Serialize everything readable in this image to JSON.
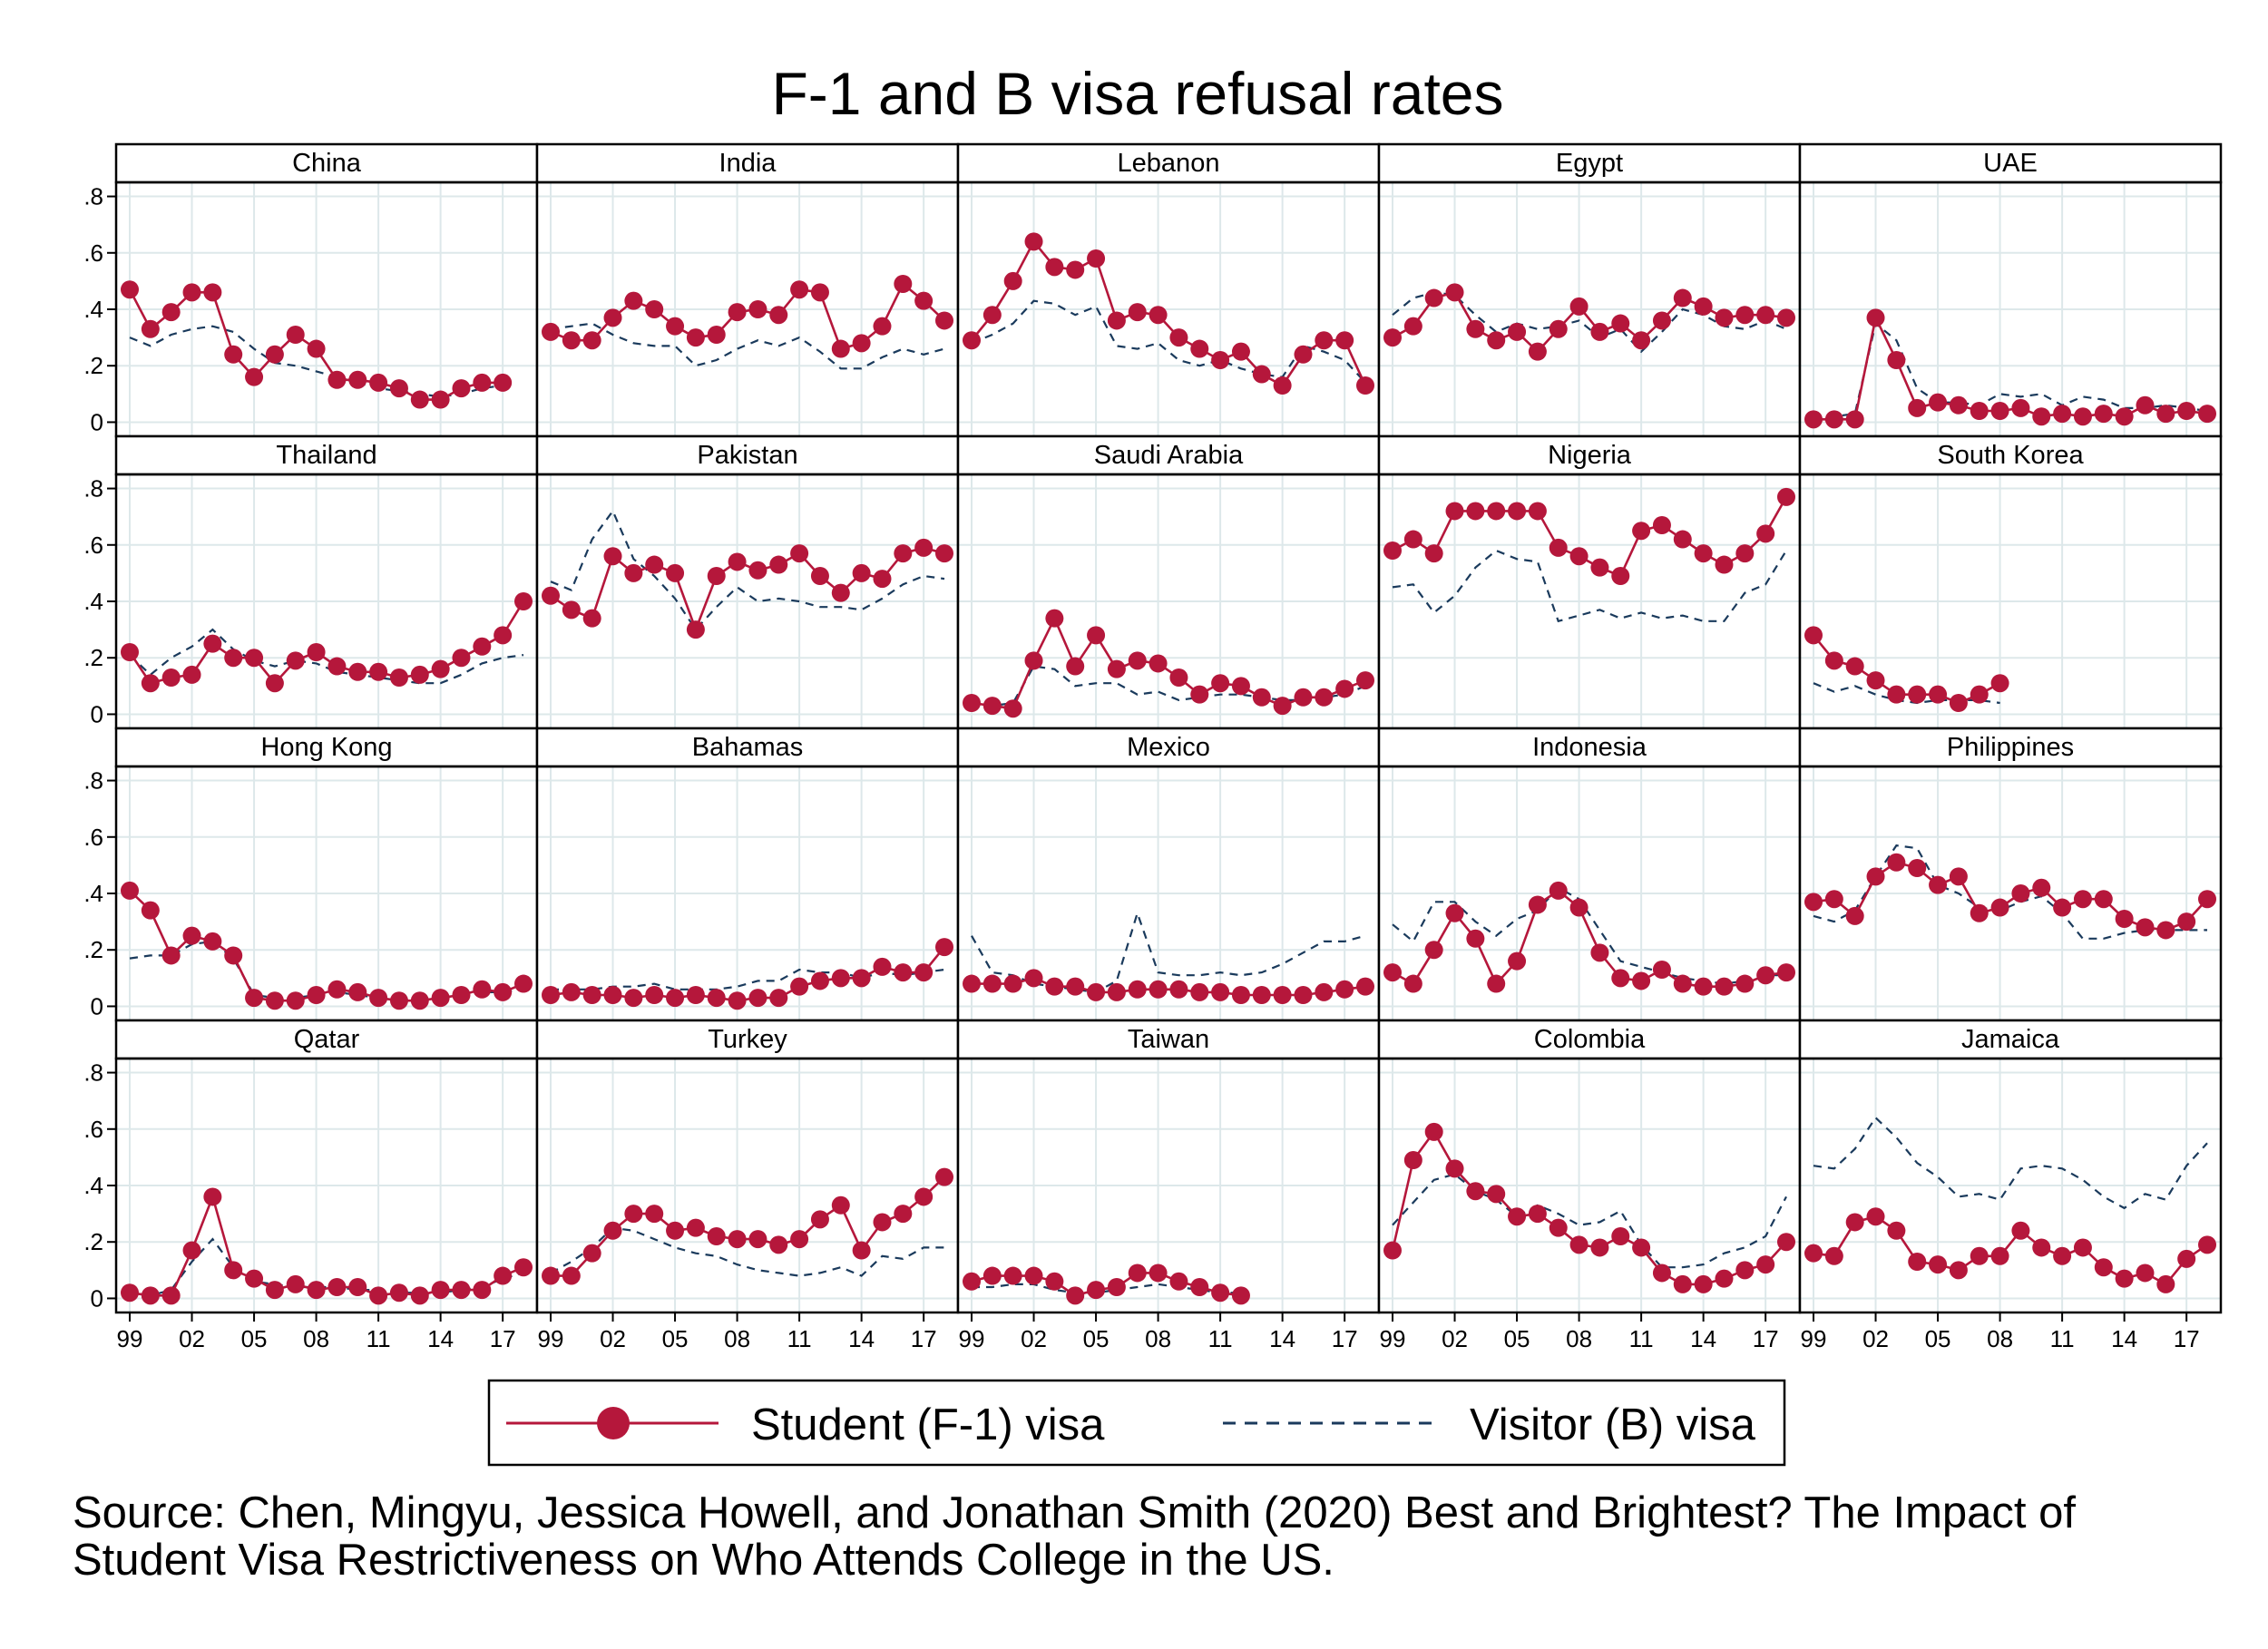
{
  "chart_data": {
    "type": "line",
    "title": "F-1 and B visa refusal rates",
    "x": [
      1999,
      2000,
      2001,
      2002,
      2003,
      2004,
      2005,
      2006,
      2007,
      2008,
      2009,
      2010,
      2011,
      2012,
      2013,
      2014,
      2015,
      2016,
      2017,
      2018
    ],
    "x_tick_values": [
      1999,
      2002,
      2005,
      2008,
      2011,
      2014,
      2017
    ],
    "x_tick_labels": [
      "99",
      "02",
      "05",
      "08",
      "11",
      "14",
      "17"
    ],
    "ylim": [
      -0.05,
      0.85
    ],
    "y_tick_values": [
      0,
      0.2,
      0.4,
      0.6,
      0.8
    ],
    "y_tick_labels": [
      "0",
      ".2",
      ".4",
      ".6",
      ".8"
    ],
    "grid": true,
    "legend": {
      "position": "bottom-center",
      "entries": [
        {
          "key": "f1",
          "label": "Student (F-1) visa",
          "color": "#b5173b",
          "style": "solid-with-markers"
        },
        {
          "key": "b",
          "label": "Visitor (B) visa",
          "color": "#1a3a5c",
          "style": "dashed"
        }
      ]
    },
    "panels": [
      {
        "name": "China",
        "f1": [
          0.47,
          0.33,
          0.39,
          0.46,
          0.46,
          0.24,
          0.16,
          0.24,
          0.31,
          0.26,
          0.15,
          0.15,
          0.14,
          0.12,
          0.08,
          0.08,
          0.12,
          0.14,
          0.14,
          null
        ],
        "b": [
          0.3,
          0.27,
          0.31,
          0.33,
          0.34,
          0.32,
          0.26,
          0.21,
          0.2,
          0.18,
          0.16,
          0.14,
          0.12,
          0.11,
          0.1,
          0.09,
          0.1,
          0.12,
          0.13,
          null
        ]
      },
      {
        "name": "India",
        "f1": [
          0.32,
          0.29,
          0.29,
          0.37,
          0.43,
          0.4,
          0.34,
          0.3,
          0.31,
          0.39,
          0.4,
          0.38,
          0.47,
          0.46,
          0.26,
          0.28,
          0.34,
          0.49,
          0.43,
          0.36
        ],
        "b": [
          0.33,
          0.34,
          0.35,
          0.31,
          0.28,
          0.27,
          0.27,
          0.2,
          0.22,
          0.26,
          0.29,
          0.27,
          0.3,
          0.25,
          0.19,
          0.19,
          0.23,
          0.26,
          0.24,
          0.26
        ]
      },
      {
        "name": "Lebanon",
        "f1": [
          0.29,
          0.38,
          0.5,
          0.64,
          0.55,
          0.54,
          0.58,
          0.36,
          0.39,
          0.38,
          0.3,
          0.26,
          0.22,
          0.25,
          0.17,
          0.13,
          0.24,
          0.29,
          0.29,
          0.13
        ],
        "b": [
          0.28,
          0.31,
          0.35,
          0.43,
          0.42,
          0.38,
          0.41,
          0.27,
          0.26,
          0.28,
          0.22,
          0.2,
          0.22,
          0.19,
          0.17,
          0.16,
          0.27,
          0.25,
          0.22,
          0.14
        ]
      },
      {
        "name": "Egypt",
        "f1": [
          0.3,
          0.34,
          0.44,
          0.46,
          0.33,
          0.29,
          0.32,
          0.25,
          0.33,
          0.41,
          0.32,
          0.35,
          0.29,
          0.36,
          0.44,
          0.41,
          0.37,
          0.38,
          0.38,
          0.37
        ],
        "b": [
          0.38,
          0.44,
          0.46,
          0.45,
          0.38,
          0.32,
          0.35,
          0.33,
          0.34,
          0.36,
          0.3,
          0.33,
          0.25,
          0.32,
          0.4,
          0.38,
          0.34,
          0.33,
          0.36,
          0.33
        ]
      },
      {
        "name": "UAE",
        "f1": [
          0.01,
          0.01,
          0.01,
          0.37,
          0.22,
          0.05,
          0.07,
          0.06,
          0.04,
          0.04,
          0.05,
          0.02,
          0.03,
          0.02,
          0.03,
          0.02,
          0.06,
          0.03,
          0.04,
          0.03
        ],
        "b": [
          0.02,
          0.02,
          0.03,
          0.35,
          0.29,
          0.12,
          0.07,
          0.07,
          0.06,
          0.1,
          0.09,
          0.1,
          0.06,
          0.09,
          0.08,
          0.05,
          0.05,
          0.06,
          0.05,
          0.04
        ]
      },
      {
        "name": "Thailand",
        "f1": [
          0.22,
          0.11,
          0.13,
          0.14,
          0.25,
          0.2,
          0.2,
          0.11,
          0.19,
          0.22,
          0.17,
          0.15,
          0.15,
          0.13,
          0.14,
          0.16,
          0.2,
          0.24,
          0.28,
          0.4
        ],
        "b": [
          0.21,
          0.14,
          0.2,
          0.24,
          0.3,
          0.23,
          0.19,
          0.17,
          0.19,
          0.18,
          0.15,
          0.14,
          0.13,
          0.12,
          0.11,
          0.11,
          0.14,
          0.18,
          0.2,
          0.21
        ]
      },
      {
        "name": "Pakistan",
        "f1": [
          0.42,
          0.37,
          0.34,
          0.56,
          0.5,
          0.53,
          0.5,
          0.3,
          0.49,
          0.54,
          0.51,
          0.53,
          0.57,
          0.49,
          0.43,
          0.5,
          0.48,
          0.57,
          0.59,
          0.57
        ],
        "b": [
          0.47,
          0.44,
          0.62,
          0.72,
          0.55,
          0.49,
          0.41,
          0.3,
          0.38,
          0.45,
          0.4,
          0.41,
          0.4,
          0.38,
          0.38,
          0.37,
          0.41,
          0.46,
          0.49,
          0.48
        ]
      },
      {
        "name": "Saudi Arabia",
        "f1": [
          0.04,
          0.03,
          0.02,
          0.19,
          0.34,
          0.17,
          0.28,
          0.16,
          0.19,
          0.18,
          0.13,
          0.07,
          0.11,
          0.1,
          0.06,
          0.03,
          0.06,
          0.06,
          0.09,
          0.12
        ],
        "b": [
          0.03,
          0.03,
          0.04,
          0.17,
          0.16,
          0.1,
          0.11,
          0.11,
          0.07,
          0.08,
          0.05,
          0.06,
          0.07,
          0.07,
          0.06,
          0.05,
          0.05,
          0.06,
          0.07,
          0.1
        ]
      },
      {
        "name": "Nigeria",
        "f1": [
          0.58,
          0.62,
          0.57,
          0.72,
          0.72,
          0.72,
          0.72,
          0.72,
          0.59,
          0.56,
          0.52,
          0.49,
          0.65,
          0.67,
          0.62,
          0.57,
          0.53,
          0.57,
          0.64,
          0.77
        ],
        "b": [
          0.45,
          0.46,
          0.36,
          0.42,
          0.52,
          0.58,
          0.55,
          0.54,
          0.33,
          0.35,
          0.37,
          0.34,
          0.36,
          0.34,
          0.35,
          0.33,
          0.33,
          0.43,
          0.46,
          0.58
        ]
      },
      {
        "name": "South Korea",
        "f1": [
          0.28,
          0.19,
          0.17,
          0.12,
          0.07,
          0.07,
          0.07,
          0.04,
          0.07,
          0.11,
          null,
          null,
          null,
          null,
          null,
          null,
          null,
          null,
          null,
          null
        ],
        "b": [
          0.11,
          0.08,
          0.1,
          0.07,
          0.05,
          0.04,
          0.05,
          0.05,
          0.05,
          0.04,
          null,
          null,
          null,
          null,
          null,
          null,
          null,
          null,
          null,
          null
        ]
      },
      {
        "name": "Hong Kong",
        "f1": [
          0.41,
          0.34,
          0.18,
          0.25,
          0.23,
          0.18,
          0.03,
          0.02,
          0.02,
          0.04,
          0.06,
          0.05,
          0.03,
          0.02,
          0.02,
          0.03,
          0.04,
          0.06,
          0.05,
          0.08
        ],
        "b": [
          0.17,
          0.18,
          0.18,
          0.22,
          0.23,
          0.17,
          0.04,
          0.03,
          0.03,
          0.04,
          0.05,
          0.04,
          0.03,
          0.02,
          0.02,
          0.03,
          0.04,
          0.05,
          0.05,
          0.06
        ]
      },
      {
        "name": "Bahamas",
        "f1": [
          0.04,
          0.05,
          0.04,
          0.04,
          0.03,
          0.04,
          0.03,
          0.04,
          0.03,
          0.02,
          0.03,
          0.03,
          0.07,
          0.09,
          0.1,
          0.1,
          0.14,
          0.12,
          0.12,
          0.21
        ],
        "b": [
          0.06,
          0.06,
          0.06,
          0.07,
          0.07,
          0.08,
          0.06,
          0.06,
          0.06,
          0.07,
          0.09,
          0.09,
          0.13,
          0.12,
          0.12,
          0.1,
          0.12,
          0.11,
          0.12,
          0.13
        ]
      },
      {
        "name": "Mexico",
        "f1": [
          0.08,
          0.08,
          0.08,
          0.1,
          0.07,
          0.07,
          0.05,
          0.05,
          0.06,
          0.06,
          0.06,
          0.05,
          0.05,
          0.04,
          0.04,
          0.04,
          0.04,
          0.05,
          0.06,
          0.07
        ],
        "b": [
          0.25,
          0.12,
          0.11,
          0.08,
          0.07,
          0.06,
          0.05,
          0.09,
          0.33,
          0.12,
          0.11,
          0.11,
          0.12,
          0.11,
          0.12,
          0.15,
          0.19,
          0.23,
          0.23,
          0.25
        ]
      },
      {
        "name": "Indonesia",
        "f1": [
          0.12,
          0.08,
          0.2,
          0.33,
          0.24,
          0.08,
          0.16,
          0.36,
          0.41,
          0.35,
          0.19,
          0.1,
          0.09,
          0.13,
          0.08,
          0.07,
          0.07,
          0.08,
          0.11,
          0.12
        ],
        "b": [
          0.29,
          0.23,
          0.37,
          0.37,
          0.3,
          0.25,
          0.31,
          0.34,
          0.42,
          0.38,
          0.27,
          0.16,
          0.14,
          0.12,
          0.1,
          0.09,
          0.08,
          0.09,
          0.11,
          0.11
        ]
      },
      {
        "name": "Philippines",
        "f1": [
          0.37,
          0.38,
          0.32,
          0.46,
          0.51,
          0.49,
          0.43,
          0.46,
          0.33,
          0.35,
          0.4,
          0.42,
          0.35,
          0.38,
          0.38,
          0.31,
          0.28,
          0.27,
          0.3,
          0.38
        ],
        "b": [
          0.32,
          0.3,
          0.34,
          0.46,
          0.57,
          0.56,
          0.43,
          0.4,
          0.35,
          0.34,
          0.37,
          0.39,
          0.33,
          0.24,
          0.24,
          0.26,
          0.27,
          0.27,
          0.27,
          0.27
        ]
      },
      {
        "name": "Qatar",
        "f1": [
          0.02,
          0.01,
          0.01,
          0.17,
          0.36,
          0.1,
          0.07,
          0.03,
          0.05,
          0.03,
          0.04,
          0.04,
          0.01,
          0.02,
          0.01,
          0.03,
          0.03,
          0.03,
          0.08,
          0.11
        ],
        "b": [
          0.01,
          0.01,
          0.03,
          0.13,
          0.21,
          0.11,
          0.06,
          0.05,
          0.04,
          0.04,
          0.04,
          0.03,
          0.03,
          0.02,
          0.02,
          0.02,
          0.03,
          0.04,
          0.07,
          0.09
        ]
      },
      {
        "name": "Turkey",
        "f1": [
          0.08,
          0.08,
          0.16,
          0.24,
          0.3,
          0.3,
          0.24,
          0.25,
          0.22,
          0.21,
          0.21,
          0.19,
          0.21,
          0.28,
          0.33,
          0.17,
          0.27,
          0.3,
          0.36,
          0.43
        ],
        "b": [
          0.09,
          0.13,
          0.18,
          0.25,
          0.24,
          0.21,
          0.18,
          0.16,
          0.15,
          0.12,
          0.1,
          0.09,
          0.08,
          0.09,
          0.11,
          0.08,
          0.15,
          0.14,
          0.18,
          0.18
        ]
      },
      {
        "name": "Taiwan",
        "f1": [
          0.06,
          0.08,
          0.08,
          0.08,
          0.06,
          0.01,
          0.03,
          0.04,
          0.09,
          0.09,
          0.06,
          0.04,
          0.02,
          0.01,
          null,
          null,
          null,
          null,
          null,
          null
        ],
        "b": [
          0.04,
          0.04,
          0.05,
          0.05,
          0.03,
          0.02,
          0.02,
          0.03,
          0.04,
          0.05,
          0.04,
          0.03,
          0.02,
          0.02,
          null,
          null,
          null,
          null,
          null,
          null
        ]
      },
      {
        "name": "Colombia",
        "f1": [
          0.17,
          0.49,
          0.59,
          0.46,
          0.38,
          0.37,
          0.29,
          0.3,
          0.25,
          0.19,
          0.18,
          0.22,
          0.18,
          0.09,
          0.05,
          0.05,
          0.07,
          0.1,
          0.12,
          0.2
        ],
        "b": [
          0.26,
          0.34,
          0.42,
          0.44,
          0.38,
          0.35,
          0.29,
          0.33,
          0.3,
          0.26,
          0.27,
          0.31,
          0.19,
          0.11,
          0.11,
          0.12,
          0.16,
          0.18,
          0.22,
          0.36
        ]
      },
      {
        "name": "Jamaica",
        "f1": [
          0.16,
          0.15,
          0.27,
          0.29,
          0.24,
          0.13,
          0.12,
          0.1,
          0.15,
          0.15,
          0.24,
          0.18,
          0.15,
          0.18,
          0.11,
          0.07,
          0.09,
          0.05,
          0.14,
          0.19
        ],
        "b": [
          0.47,
          0.46,
          0.53,
          0.64,
          0.57,
          0.48,
          0.43,
          0.36,
          0.37,
          0.35,
          0.46,
          0.47,
          0.46,
          0.42,
          0.36,
          0.32,
          0.37,
          0.35,
          0.47,
          0.55
        ]
      }
    ]
  },
  "source_note": "Source: Chen, Mingyu, Jessica Howell, and Jonathan Smith (2020) Best and Brightest? The Impact of Student Visa Restrictiveness on Who Attends College in the US."
}
